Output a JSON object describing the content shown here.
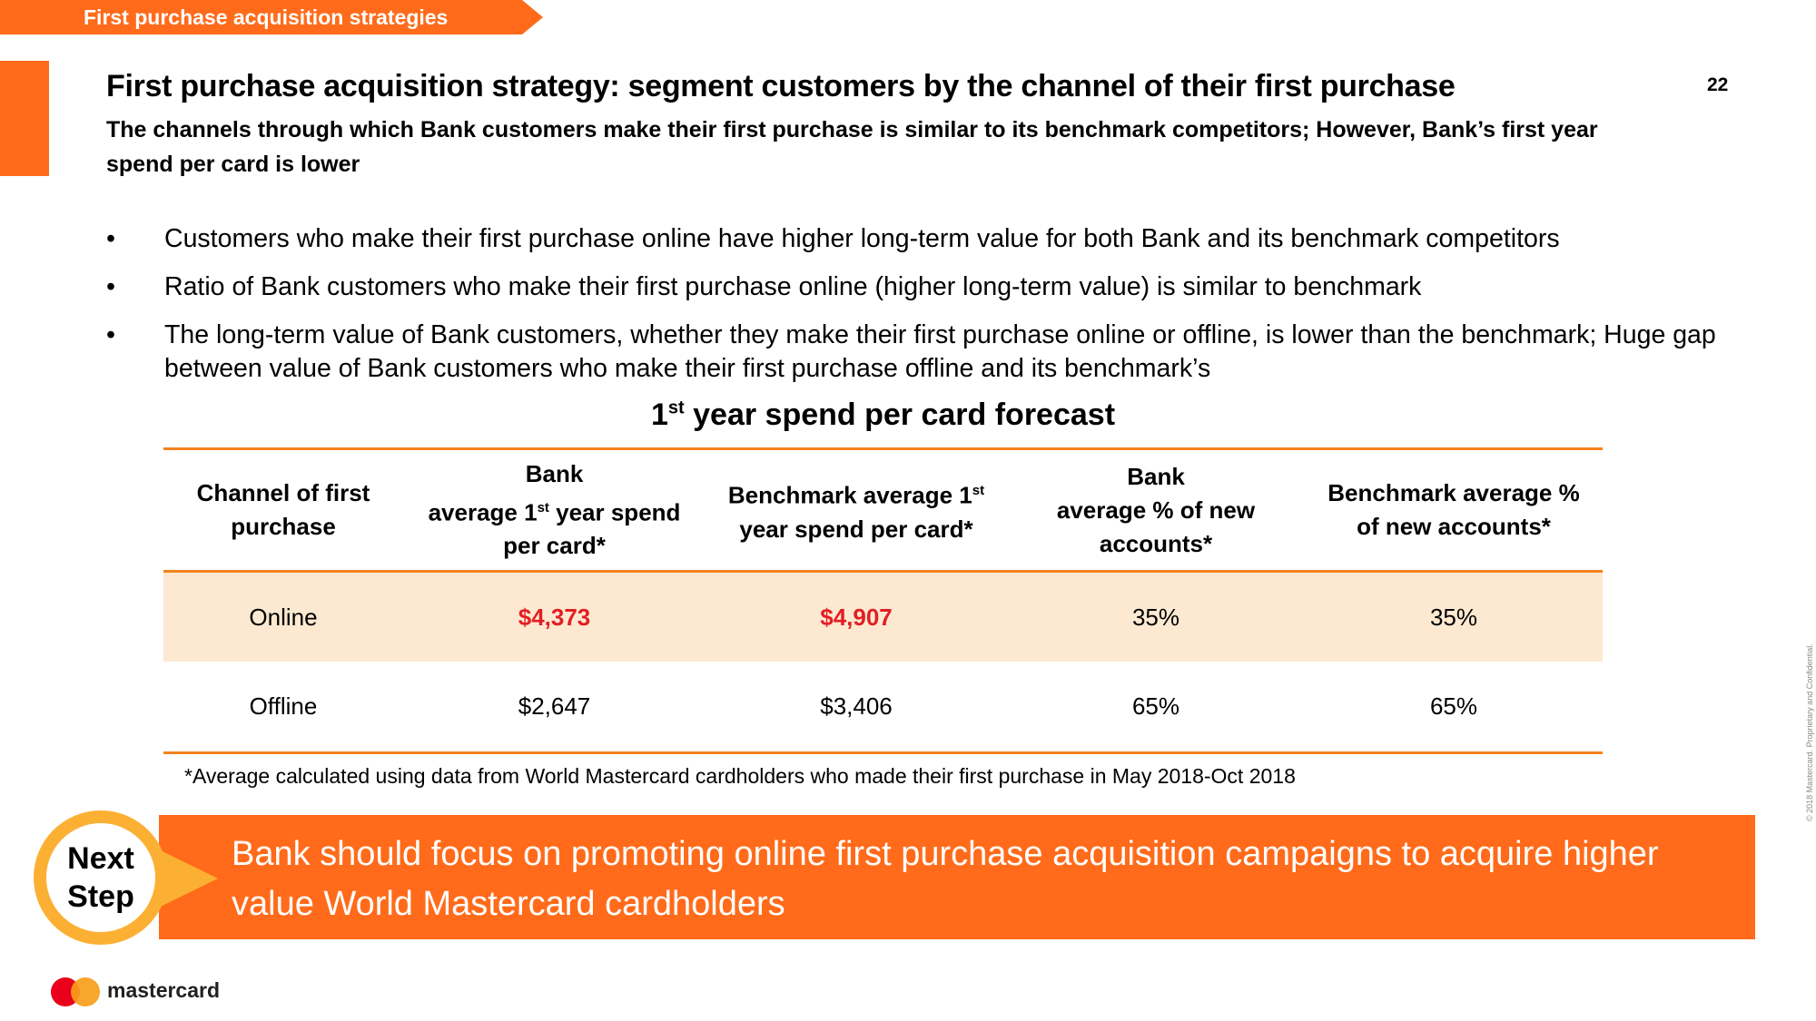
{
  "banner": {
    "label": "First purchase acquisition strategies"
  },
  "page_number": "22",
  "header": {
    "title": "First purchase acquisition strategy: segment customers by the channel of their first purchase",
    "subtitle": "The channels through which Bank customers make their first purchase is similar to its benchmark competitors; However, Bank’s first year spend per card is lower"
  },
  "bullets": [
    "Customers who make their first purchase online have higher long-term value for both Bank and its benchmark competitors",
    "Ratio of Bank customers who make their first purchase online (higher long-term value) is similar to benchmark",
    "The long-term value of Bank customers, whether they make their first purchase online or offline, is lower than the benchmark; Huge gap between value of Bank customers who make their first purchase offline and its benchmark’s"
  ],
  "bullet_marker": "•",
  "table": {
    "title_prefix": "1",
    "title_sup": "st",
    "title_rest": " year spend per card forecast",
    "headers": {
      "channel": "Channel of first purchase",
      "bank_spend_line1": "Bank",
      "bank_spend_line2_pre": "average 1",
      "bank_spend_sup": "st",
      "bank_spend_line2_post": " year spend",
      "bank_spend_line3": "per card*",
      "bench_spend_pre": "Benchmark average 1",
      "bench_spend_sup": "st",
      "bench_spend_post": "year spend per card*",
      "bank_pct_line1": "Bank",
      "bank_pct_line2": "average % of new",
      "bank_pct_line3": "accounts*",
      "bench_pct": "Benchmark average % of new accounts*"
    },
    "rows": [
      {
        "channel": "Online",
        "bank_spend": "$4,373",
        "bench_spend": "$4,907",
        "bank_pct": "35%",
        "bench_pct": "35%"
      },
      {
        "channel": "Offline",
        "bank_spend": "$2,647",
        "bench_spend": "$3,406",
        "bank_pct": "65%",
        "bench_pct": "65%"
      }
    ],
    "footnote": "*Average calculated using data from World Mastercard cardholders who made their first purchase in May 2018-Oct 2018"
  },
  "next_step": {
    "badge_line1": "Next",
    "badge_line2": "Step",
    "text": "Bank should focus on promoting online first purchase acquisition campaigns to acquire higher value World Mastercard cardholders"
  },
  "footer": {
    "logo_text": "mastercard",
    "copyright": "© 2018 Mastercard. Proprietary and Confidential."
  },
  "colors": {
    "accent_orange": "#ff6b1a",
    "table_rule": "#f5821f",
    "highlight_row": "#fde9d1",
    "highlight_value": "#e31e24",
    "badge_ring": "#fbb034"
  }
}
